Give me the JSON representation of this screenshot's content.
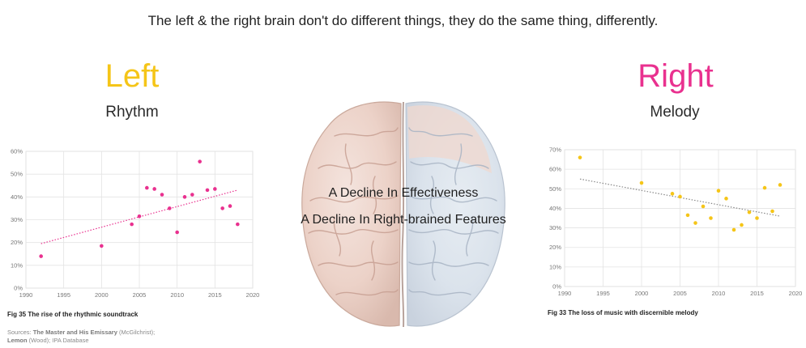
{
  "headline": "The left & the right brain don't do different things, they do the same thing, differently.",
  "left": {
    "title": "Left",
    "subtitle": "Rhythm",
    "color": "#f5c518"
  },
  "right": {
    "title": "Right",
    "subtitle": "Melody",
    "color": "#e9318f"
  },
  "center": {
    "line1": "A Decline In Effectiveness",
    "line2": "A Decline In Right-brained Features"
  },
  "sources": {
    "prefix": "Sources: ",
    "source1_name": "The Master and His Emissary",
    "source1_author": " (McGilchrist);",
    "source2_name": "Lemon",
    "source2_rest": " (Wood); IPA Database"
  },
  "chart_data": [
    {
      "type": "scatter",
      "caption": "Fig 35 The rise of the rhythmic soundtrack",
      "color": "#e9318f",
      "xlim": [
        1990,
        2020
      ],
      "ylim": [
        0,
        60
      ],
      "xticks": [
        1990,
        1995,
        2000,
        2005,
        2010,
        2015,
        2020
      ],
      "yticks": [
        0,
        10,
        20,
        30,
        40,
        50,
        60
      ],
      "ytick_labels": [
        "0%",
        "10%",
        "20%",
        "30%",
        "40%",
        "50%",
        "60%"
      ],
      "grid": true,
      "trendline": {
        "style": "dotted",
        "from": [
          1992,
          19.5
        ],
        "to": [
          2018,
          43
        ]
      },
      "points": [
        [
          1992,
          14
        ],
        [
          2000,
          18.5
        ],
        [
          2004,
          28
        ],
        [
          2005,
          31.5
        ],
        [
          2006,
          44
        ],
        [
          2007,
          43.5
        ],
        [
          2008,
          41
        ],
        [
          2009,
          35
        ],
        [
          2010,
          24.5
        ],
        [
          2011,
          40
        ],
        [
          2012,
          41
        ],
        [
          2013,
          55.5
        ],
        [
          2014,
          43
        ],
        [
          2015,
          43.5
        ],
        [
          2016,
          35
        ],
        [
          2017,
          36
        ],
        [
          2018,
          28
        ]
      ]
    },
    {
      "type": "scatter",
      "caption": "Fig 33 The loss of music with discernible melody",
      "color": "#f5c518",
      "xlim": [
        1990,
        2020
      ],
      "ylim": [
        0,
        70
      ],
      "xticks": [
        1990,
        1995,
        2000,
        2005,
        2010,
        2015,
        2020
      ],
      "yticks": [
        0,
        10,
        20,
        30,
        40,
        50,
        60,
        70
      ],
      "ytick_labels": [
        "0%",
        "10%",
        "20%",
        "30%",
        "40%",
        "50%",
        "60%",
        "70%"
      ],
      "grid": true,
      "trendline": {
        "style": "dotted",
        "from": [
          1992,
          55
        ],
        "to": [
          2018,
          36
        ]
      },
      "points": [
        [
          1992,
          66
        ],
        [
          2000,
          53
        ],
        [
          2004,
          47.5
        ],
        [
          2005,
          46
        ],
        [
          2006,
          36.5
        ],
        [
          2007,
          32.5
        ],
        [
          2008,
          41
        ],
        [
          2009,
          35
        ],
        [
          2010,
          49
        ],
        [
          2011,
          45
        ],
        [
          2012,
          29
        ],
        [
          2013,
          31.5
        ],
        [
          2014,
          38
        ],
        [
          2015,
          35
        ],
        [
          2016,
          50.5
        ],
        [
          2017,
          38.5
        ],
        [
          2018,
          52
        ]
      ]
    }
  ]
}
